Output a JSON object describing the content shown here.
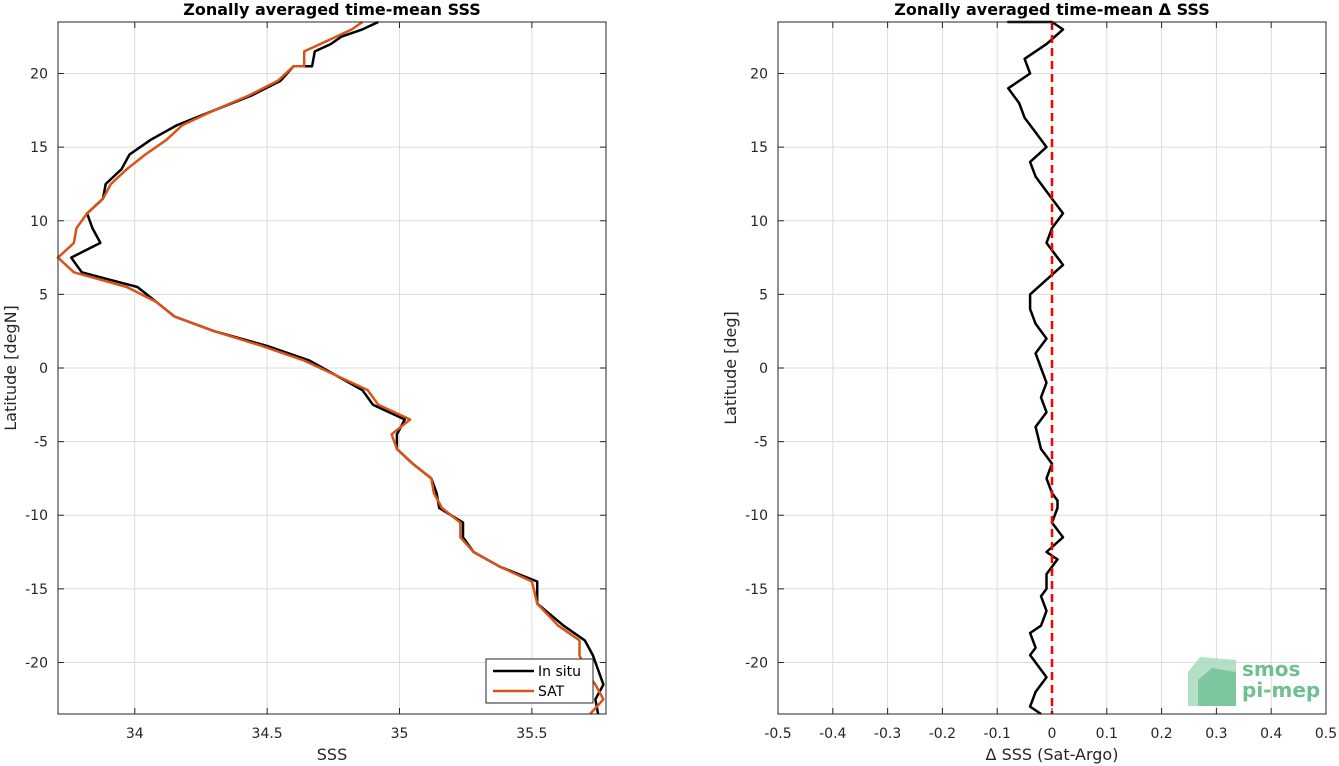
{
  "chart_data": [
    {
      "type": "line",
      "title": "Zonally averaged time-mean SSS",
      "xlabel": "SSS",
      "ylabel": "Latitude [degN]",
      "xlim": [
        33.71,
        35.78
      ],
      "ylim": [
        -23.5,
        23.5
      ],
      "xticks": [
        "34",
        "34.5",
        "35",
        "35.5"
      ],
      "xtick_values": [
        34,
        34.5,
        35,
        35.5
      ],
      "yticks": [
        "20",
        "15",
        "10",
        "5",
        "0",
        "-5",
        "-10",
        "-15",
        "-20"
      ],
      "ytick_values": [
        20,
        15,
        10,
        5,
        0,
        -5,
        -10,
        -15,
        -20
      ],
      "grid": true,
      "legend_position": "bottom-right",
      "series": [
        {
          "name": "In situ",
          "color": "#000000",
          "x": [
            35.75,
            35.74,
            35.77,
            35.75,
            35.73,
            35.7,
            35.62,
            35.52,
            35.52,
            35.38,
            35.28,
            35.24,
            35.24,
            35.15,
            35.14,
            35.12,
            35.05,
            34.99,
            34.99,
            35.02,
            34.9,
            34.86,
            34.76,
            34.66,
            34.5,
            34.3,
            34.15,
            34.08,
            34.01,
            33.8,
            33.76,
            33.87,
            33.84,
            33.82,
            33.88,
            33.89,
            33.95,
            33.98,
            34.06,
            34.16,
            34.3,
            34.44,
            34.55,
            34.6,
            34.67,
            34.68,
            34.74,
            34.78,
            34.86,
            34.92
          ],
          "y": [
            -23.5,
            -22.5,
            -21.5,
            -20.5,
            -19.5,
            -18.5,
            -17.5,
            -16.0,
            -14.5,
            -13.5,
            -12.5,
            -11.5,
            -10.5,
            -9.5,
            -8.5,
            -7.5,
            -6.5,
            -5.5,
            -4.5,
            -3.5,
            -2.5,
            -1.5,
            -0.5,
            0.5,
            1.5,
            2.5,
            3.5,
            4.5,
            5.5,
            6.5,
            7.5,
            8.5,
            9.5,
            10.5,
            11.5,
            12.5,
            13.5,
            14.5,
            15.5,
            16.5,
            17.5,
            18.5,
            19.5,
            20.5,
            20.5,
            21.5,
            22.0,
            22.5,
            23.0,
            23.5
          ]
        },
        {
          "name": "SAT",
          "color": "#d95319",
          "x": [
            35.72,
            35.77,
            35.74,
            35.7,
            35.68,
            35.68,
            35.6,
            35.52,
            35.5,
            35.38,
            35.28,
            35.23,
            35.23,
            35.16,
            35.13,
            35.12,
            35.05,
            34.99,
            34.97,
            35.04,
            34.92,
            34.88,
            34.76,
            34.64,
            34.48,
            34.3,
            34.15,
            34.08,
            33.97,
            33.77,
            33.71,
            33.77,
            33.78,
            33.82,
            33.88,
            33.91,
            33.97,
            34.04,
            34.12,
            34.18,
            34.3,
            34.43,
            34.54,
            34.6,
            34.64,
            34.64,
            34.7,
            34.76,
            34.82,
            34.86
          ],
          "y": [
            -23.5,
            -22.5,
            -21.5,
            -20.5,
            -19.5,
            -18.5,
            -17.5,
            -16.0,
            -14.5,
            -13.5,
            -12.5,
            -11.5,
            -10.5,
            -9.5,
            -8.5,
            -7.5,
            -6.5,
            -5.5,
            -4.5,
            -3.5,
            -2.5,
            -1.5,
            -0.5,
            0.5,
            1.5,
            2.5,
            3.5,
            4.5,
            5.5,
            6.5,
            7.5,
            8.5,
            9.5,
            10.5,
            11.5,
            12.5,
            13.5,
            14.5,
            15.5,
            16.5,
            17.5,
            18.5,
            19.5,
            20.5,
            20.5,
            21.5,
            22.0,
            22.5,
            23.0,
            23.5
          ]
        }
      ]
    },
    {
      "type": "line",
      "title": "Zonally averaged time-mean Δ SSS",
      "xlabel": "Δ SSS (Sat-Argo)",
      "ylabel": "Latitude [deg]",
      "xlim": [
        -0.5,
        0.5
      ],
      "ylim": [
        -23.5,
        23.5
      ],
      "xticks": [
        "-0.5",
        "-0.4",
        "-0.3",
        "-0.2",
        "-0.1",
        "0",
        "0.1",
        "0.2",
        "0.3",
        "0.4",
        "0.5"
      ],
      "xtick_values": [
        -0.5,
        -0.4,
        -0.3,
        -0.2,
        -0.1,
        0,
        0.1,
        0.2,
        0.3,
        0.4,
        0.5
      ],
      "yticks": [
        "20",
        "15",
        "10",
        "5",
        "0",
        "-5",
        "-10",
        "-15",
        "-20"
      ],
      "ytick_values": [
        20,
        15,
        10,
        5,
        0,
        -5,
        -10,
        -15,
        -20
      ],
      "grid": true,
      "reference_line": {
        "x": 0,
        "color": "#ff0000",
        "style": "dashed"
      },
      "series": [
        {
          "color": "#000000",
          "x": [
            -0.02,
            -0.04,
            -0.03,
            -0.01,
            -0.03,
            -0.04,
            -0.03,
            -0.04,
            -0.02,
            -0.01,
            -0.02,
            -0.01,
            -0.01,
            0.0,
            0.01,
            -0.01,
            0.02,
            0.01,
            0.0,
            0.01,
            0.01,
            0.0,
            -0.01,
            0.0,
            -0.01,
            -0.02,
            -0.03,
            -0.01,
            -0.02,
            -0.01,
            -0.02,
            -0.03,
            -0.01,
            -0.03,
            -0.04,
            -0.04,
            -0.01,
            0.02,
            0.0,
            -0.01,
            0.0,
            0.02,
            0.0,
            -0.03,
            -0.04,
            -0.01,
            -0.03,
            -0.05,
            -0.06,
            -0.08,
            -0.04,
            -0.05,
            -0.01,
            0.02,
            0.0,
            -0.02,
            -0.01,
            -0.03,
            -0.05,
            -0.06,
            -0.07,
            -0.08,
            -0.07,
            -0.06,
            -0.07,
            -0.08
          ],
          "y": [
            -23.5,
            -23.0,
            -22.0,
            -21.0,
            -20.0,
            -19.5,
            -19.0,
            -18.0,
            -17.5,
            -16.5,
            -15.5,
            -15.0,
            -14.0,
            -13.5,
            -13.0,
            -12.5,
            -11.5,
            -11.0,
            -10.5,
            -9.5,
            -9.0,
            -8.5,
            -7.5,
            -6.5,
            -6.0,
            -5.5,
            -4.0,
            -3.0,
            -2.0,
            -1.0,
            0.0,
            1.0,
            2.0,
            3.0,
            4.0,
            5.0,
            6.0,
            7.0,
            8.0,
            8.5,
            9.5,
            10.5,
            11.5,
            13.0,
            14.0,
            15.0,
            16.0,
            17.0,
            18.0,
            19.0,
            20.0,
            21.0,
            22.0,
            23.0,
            23.5,
            23.5,
            23.5,
            23.5,
            23.5,
            23.5,
            23.5,
            23.5,
            23.5,
            23.5,
            23.5,
            23.5
          ]
        }
      ]
    }
  ],
  "logo": {
    "line1": "smos",
    "line2": "pi-mep"
  }
}
